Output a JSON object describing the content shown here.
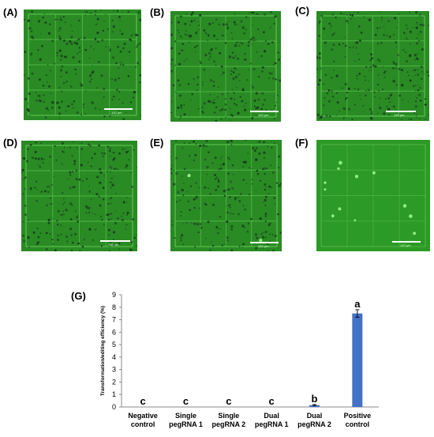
{
  "panels": [
    {
      "label": "(A)",
      "scale": "120 μm"
    },
    {
      "label": "(B)",
      "scale": "120 μm"
    },
    {
      "label": "(C)",
      "scale": "120 μm"
    },
    {
      "label": "(D)",
      "scale": "120 μm"
    },
    {
      "label": "(E)",
      "scale": "120 μm"
    },
    {
      "label": "(F)",
      "scale": "120 μm"
    }
  ],
  "chart_label": "(G)",
  "colors": {
    "bar": "#4472c4",
    "micro_bg": "#2a8a24",
    "grid_line": "#58c04c",
    "cell": "#14401a",
    "fluor": "#9cff8c"
  },
  "chart_data": {
    "type": "bar",
    "title": "",
    "xlabel": "",
    "ylabel": "Transformation/editing efficiency (%)",
    "ylim": [
      0,
      9
    ],
    "yticks": [
      0,
      1,
      2,
      3,
      4,
      5,
      6,
      7,
      8,
      9
    ],
    "categories": [
      [
        "Negative",
        "control"
      ],
      [
        "Single",
        "pegRNA 1"
      ],
      [
        "Single",
        "pegRNA 2"
      ],
      [
        "Dual",
        "pegRNA 1"
      ],
      [
        "Dual",
        "pegRNA 2"
      ],
      [
        "Positive",
        "control"
      ]
    ],
    "values": [
      0,
      0,
      0,
      0,
      0.15,
      7.5
    ],
    "errors": [
      0,
      0,
      0,
      0,
      0.05,
      0.3
    ],
    "letters": [
      "c",
      "c",
      "c",
      "c",
      "b",
      "a"
    ]
  }
}
